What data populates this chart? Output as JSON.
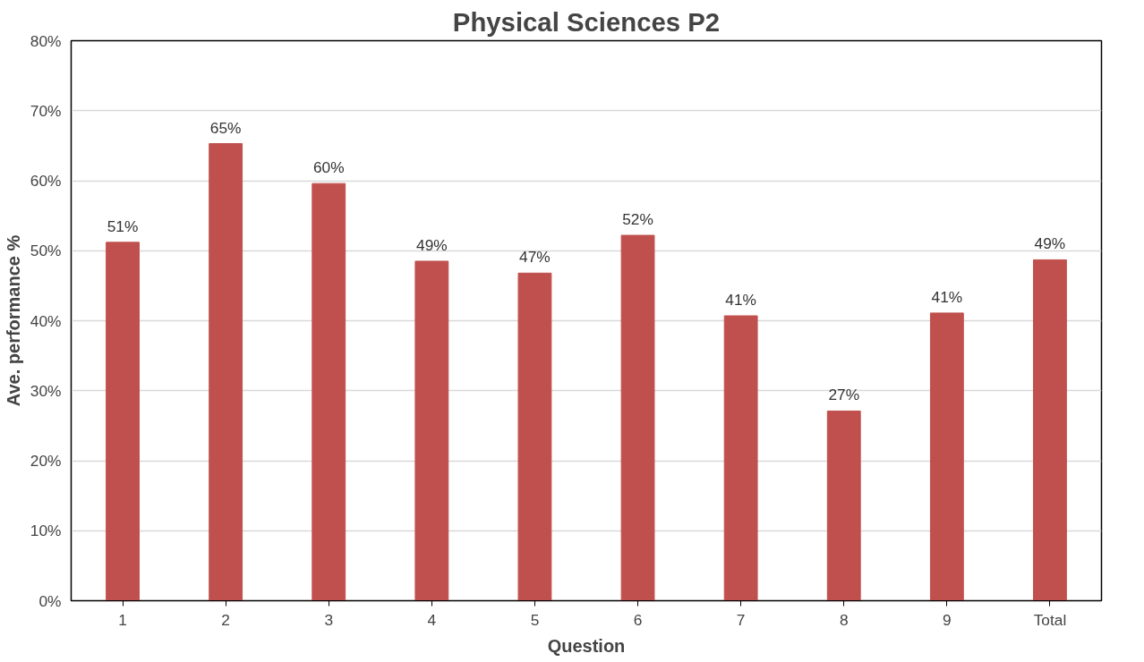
{
  "chart_data": {
    "type": "bar",
    "title": "Physical Sciences P2",
    "xlabel": "Question",
    "ylabel": "Ave. performance %",
    "categories": [
      "1",
      "2",
      "3",
      "4",
      "5",
      "6",
      "7",
      "8",
      "9",
      "Total"
    ],
    "values": [
      51.2,
      65.3,
      59.6,
      48.5,
      46.8,
      52.2,
      40.7,
      27.1,
      41.1,
      48.7
    ],
    "value_labels": [
      "51%",
      "65%",
      "60%",
      "49%",
      "47%",
      "52%",
      "41%",
      "27%",
      "41%",
      "49%"
    ],
    "color": "#c0504d",
    "grid": "y",
    "ylim": [
      0,
      80
    ],
    "yticks": [
      {
        "value": 0,
        "label": "0%"
      },
      {
        "value": 10,
        "label": "10%"
      },
      {
        "value": 20,
        "label": "20%"
      },
      {
        "value": 30,
        "label": "30%"
      },
      {
        "value": 40,
        "label": "40%"
      },
      {
        "value": 50,
        "label": "50%"
      },
      {
        "value": 60,
        "label": "60%"
      },
      {
        "value": 70,
        "label": "70%"
      },
      {
        "value": 80,
        "label": "80%"
      }
    ]
  }
}
